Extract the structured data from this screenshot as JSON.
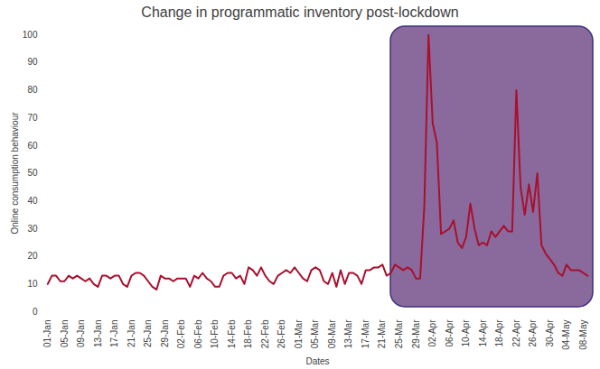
{
  "chart_data": {
    "type": "line",
    "title": "Change in programmatic inventory post-lockdown",
    "x_label": "Dates",
    "y_label": "Online consumption behaviour",
    "color": "#a8102e",
    "ylim": [
      0,
      100
    ],
    "yticks": [
      0,
      10,
      20,
      30,
      40,
      50,
      60,
      70,
      80,
      90,
      100
    ],
    "grid": false,
    "categories": [
      "01-Jan",
      null,
      null,
      null,
      "05-Jan",
      null,
      null,
      null,
      "09-Jan",
      null,
      null,
      null,
      "13-Jan",
      null,
      null,
      null,
      "17-Jan",
      null,
      null,
      null,
      "21-Jan",
      null,
      null,
      null,
      "25-Jan",
      null,
      null,
      null,
      "29-Jan",
      null,
      null,
      null,
      "02-Feb",
      null,
      null,
      null,
      "06-Feb",
      null,
      null,
      null,
      "10-Feb",
      null,
      null,
      null,
      "14-Feb",
      null,
      null,
      null,
      "18-Feb",
      null,
      null,
      null,
      "22-Feb",
      null,
      null,
      null,
      "26-Feb",
      null,
      null,
      null,
      "01-Mar",
      null,
      null,
      null,
      "05-Mar",
      null,
      null,
      null,
      "09-Mar",
      null,
      null,
      null,
      "13-Mar",
      null,
      null,
      null,
      "17-Mar",
      null,
      null,
      null,
      "21-Mar",
      null,
      null,
      null,
      "25-Mar",
      null,
      null,
      null,
      "29-Mar",
      null,
      null,
      null,
      "02-Apr",
      null,
      null,
      null,
      "06-Apr",
      null,
      null,
      null,
      "10-Apr",
      null,
      null,
      null,
      "14-Apr",
      null,
      null,
      null,
      "18-Apr",
      null,
      null,
      null,
      "22-Apr",
      null,
      null,
      null,
      "26-Apr",
      null,
      null,
      null,
      "30-Apr",
      null,
      null,
      null,
      "04-May",
      null,
      null,
      null,
      "08-May",
      null
    ],
    "values": [
      10,
      13,
      13,
      11,
      11,
      13,
      12,
      13,
      12,
      11,
      12,
      10,
      9,
      13,
      13,
      12,
      13,
      13,
      10,
      9,
      13,
      14,
      14,
      13,
      11,
      9,
      8,
      13,
      12,
      12,
      11,
      12,
      12,
      12,
      9,
      13,
      12,
      14,
      12,
      11,
      9,
      9,
      13,
      14,
      14,
      12,
      13,
      10,
      16,
      15,
      13,
      16,
      13,
      11,
      10,
      13,
      14,
      15,
      14,
      16,
      14,
      12,
      11,
      15,
      16,
      15,
      11,
      10,
      14,
      9,
      15,
      10,
      14,
      14,
      13,
      10,
      15,
      15,
      16,
      16,
      17,
      13,
      14,
      17,
      16,
      15,
      16,
      15,
      12,
      12,
      38,
      100,
      68,
      61,
      28,
      29,
      30,
      33,
      25,
      23,
      27,
      39,
      30,
      24,
      25,
      24,
      29,
      27,
      29,
      31,
      29,
      29,
      80,
      45,
      35,
      46,
      36,
      50,
      24,
      21,
      19,
      17,
      14,
      13,
      17,
      15,
      15,
      15,
      14,
      13
    ]
  }
}
